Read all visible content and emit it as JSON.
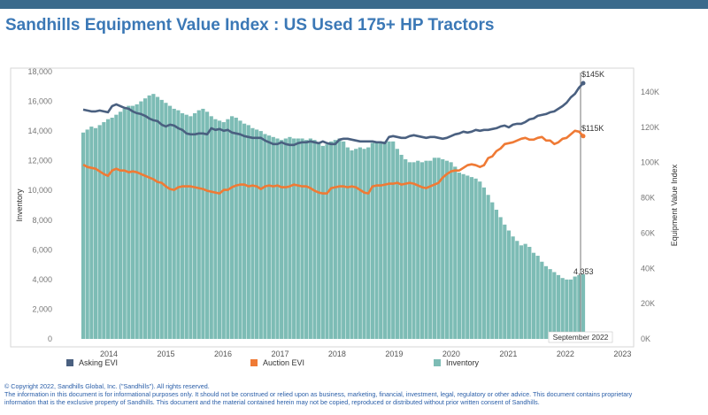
{
  "page": {
    "title": "Sandhills Equipment Value Index : US Used 175+ HP Tractors"
  },
  "chart_data": {
    "type": "bar+line",
    "title": "Sandhills Equipment Value Index : US Used 175+ HP Tractors",
    "ylabel_left": "Inventory",
    "ylabel_right": "Equipment Value Index",
    "ylim_left": [
      0,
      18000
    ],
    "ylim_right": [
      0,
      150000
    ],
    "left_ticks": [
      "18,000",
      "16,000",
      "14,000",
      "12,000",
      "10,000",
      "8,000",
      "6,000",
      "4,000",
      "2,000",
      "0"
    ],
    "right_ticks": [
      "140K",
      "120K",
      "100K",
      "80K",
      "60K",
      "40K",
      "20K",
      "0K"
    ],
    "x_ticks": [
      "2014",
      "2015",
      "2016",
      "2017",
      "2018",
      "2019",
      "2020",
      "2021",
      "2022",
      "2023"
    ],
    "x_start_year": 2013.55,
    "x_end_year": 2023.05,
    "marker_label": "September 2022",
    "callouts": {
      "asking": "$145K",
      "auction": "$115K",
      "inventory": "4,353"
    },
    "inventory": [
      13900,
      14100,
      14300,
      14200,
      14400,
      14600,
      14800,
      14900,
      15100,
      15300,
      15500,
      15700,
      15700,
      15800,
      16000,
      16200,
      16400,
      16500,
      16300,
      16100,
      15900,
      15700,
      15500,
      15400,
      15200,
      15100,
      15000,
      15200,
      15400,
      15500,
      15300,
      15000,
      14800,
      14700,
      14600,
      14800,
      15000,
      14900,
      14700,
      14500,
      14400,
      14200,
      14100,
      14000,
      13800,
      13700,
      13600,
      13500,
      13400,
      13500,
      13600,
      13500,
      13500,
      13500,
      13400,
      13500,
      13400,
      13200,
      13000,
      13100,
      13300,
      13400,
      13500,
      13300,
      12900,
      12700,
      12800,
      12900,
      12800,
      12900,
      13200,
      13300,
      13300,
      13300,
      13300,
      13300,
      12800,
      12400,
      12100,
      11900,
      11900,
      12000,
      11900,
      12000,
      12000,
      12200,
      12200,
      12100,
      12000,
      11900,
      11600,
      11200,
      11100,
      11000,
      10900,
      10800,
      10600,
      10200,
      9700,
      9200,
      8700,
      8200,
      7700,
      7300,
      6900,
      6600,
      6300,
      6400,
      6200,
      5800,
      5600,
      5200,
      4900,
      4700,
      4500,
      4300,
      4100,
      4000,
      4000,
      4200,
      4300,
      4353
    ],
    "series": [
      {
        "name": "Asking EVI",
        "color": "#4a6080",
        "values": [
          130000,
          129500,
          129000,
          129000,
          129500,
          129000,
          128500,
          132000,
          133000,
          132000,
          131000,
          130500,
          129000,
          128000,
          127500,
          126500,
          125000,
          124000,
          123500,
          121500,
          120500,
          121500,
          121000,
          119500,
          118500,
          116500,
          116000,
          116000,
          116500,
          116500,
          116000,
          119500,
          118500,
          119000,
          118000,
          118500,
          117000,
          116500,
          116000,
          115000,
          114500,
          114000,
          114000,
          114000,
          112500,
          111500,
          110500,
          110500,
          111500,
          110500,
          110000,
          110000,
          111000,
          111500,
          111500,
          112000,
          111500,
          111000,
          112000,
          111000,
          110500,
          110500,
          113000,
          113500,
          113500,
          113000,
          112500,
          112000,
          112000,
          112000,
          112000,
          111500,
          111500,
          111000,
          114500,
          115000,
          114500,
          114000,
          114000,
          115000,
          115500,
          115000,
          114500,
          114000,
          114500,
          114500,
          114000,
          113500,
          114000,
          115000,
          116000,
          116500,
          117500,
          117000,
          117500,
          118500,
          118000,
          118500,
          118500,
          119000,
          119500,
          120500,
          121000,
          120000,
          121500,
          122000,
          122000,
          123000,
          124500,
          125000,
          126500,
          127000,
          127500,
          128500,
          129000,
          130500,
          132000,
          134000,
          137000,
          139000,
          142500,
          145000
        ]
      },
      {
        "name": "Auction EVI",
        "color": "#ef7a35",
        "values": [
          98800,
          97500,
          97000,
          96500,
          95000,
          93500,
          92500,
          95500,
          96500,
          95500,
          95500,
          94500,
          95000,
          94500,
          93500,
          92500,
          91500,
          90500,
          89000,
          88500,
          86500,
          85000,
          84500,
          86000,
          86500,
          86500,
          86500,
          86000,
          85500,
          85000,
          84000,
          83500,
          83000,
          82500,
          84500,
          84500,
          86000,
          87000,
          87500,
          87500,
          86500,
          87000,
          86500,
          85000,
          86500,
          87000,
          86500,
          87000,
          86000,
          86000,
          86500,
          87500,
          87000,
          86500,
          86500,
          85500,
          84000,
          83000,
          82500,
          82500,
          85500,
          86000,
          86500,
          86500,
          86000,
          86500,
          86000,
          84500,
          83000,
          82500,
          86500,
          87000,
          87000,
          87500,
          88000,
          88000,
          88500,
          87500,
          88000,
          88500,
          88000,
          87000,
          86000,
          85500,
          86500,
          87500,
          88500,
          91500,
          93500,
          95000,
          95500,
          95500,
          97000,
          98500,
          99000,
          98500,
          97500,
          98500,
          102500,
          103500,
          106500,
          108000,
          110500,
          111000,
          111500,
          112500,
          113500,
          114000,
          113000,
          113000,
          114000,
          114500,
          112500,
          112500,
          110500,
          111500,
          113500,
          114000,
          116000,
          118000,
          117500,
          115000
        ]
      }
    ],
    "legend": [
      {
        "name": "Asking EVI",
        "color": "#4a6080"
      },
      {
        "name": "Auction EVI",
        "color": "#ef7a35"
      },
      {
        "name": "Inventory",
        "color": "#7dbcb5"
      }
    ]
  },
  "footer": {
    "line1": "© Copyright 2022, Sandhills Global, Inc. (\"Sandhills\"). All rights reserved.",
    "line2": "The information in this document is for informational purposes only.  It should not be construed or relied upon as business, marketing, financial, investment, legal, regulatory or other advice. This document contains proprietary",
    "line3": "information that is the exclusive property of Sandhills. This document and the material contained herein may not be copied, reproduced or distributed without prior written consent of Sandhills."
  }
}
